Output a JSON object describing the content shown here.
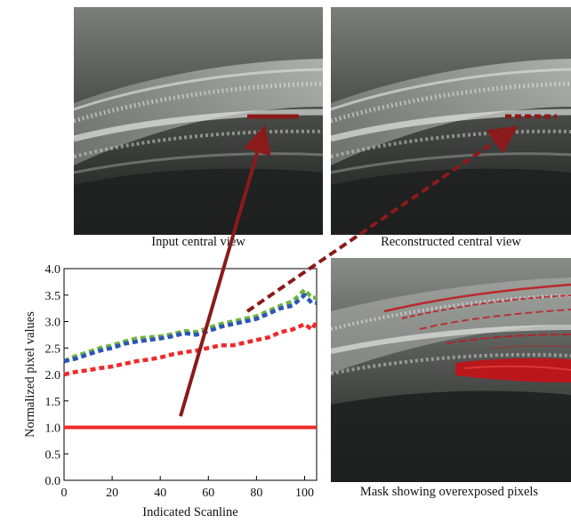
{
  "captions": {
    "input": "Input central view",
    "reconstructed": "Reconstructed central view",
    "mask": "Mask showing overexposed pixels"
  },
  "colors": {
    "marker": "#8b1a1a",
    "red": "#ee2a2a",
    "blue": "#2b55b5",
    "green": "#6fb240",
    "mask": "#c0141a"
  },
  "chart_data": {
    "type": "line",
    "xlabel": "Indicated Scanline",
    "ylabel": "Normalized pixel values",
    "xlim": [
      0,
      105
    ],
    "ylim": [
      0.0,
      4.0
    ],
    "xticks": [
      "0",
      "20",
      "40",
      "60",
      "80",
      "100"
    ],
    "yticks": [
      "0.0",
      "0.5",
      "1.0",
      "1.5",
      "2.0",
      "2.5",
      "3.0",
      "3.5",
      "4.0"
    ],
    "grid": false,
    "series": [
      {
        "color": "#ee2a2a",
        "style": "solid",
        "x": [
          0,
          105
        ],
        "y": [
          1.0,
          1.0
        ]
      },
      {
        "color": "#6fb240",
        "style": "dashed",
        "x": [
          0,
          5,
          10,
          15,
          20,
          25,
          30,
          35,
          40,
          45,
          50,
          55,
          60,
          65,
          70,
          75,
          80,
          85,
          90,
          95,
          100,
          103,
          105
        ],
        "y": [
          2.25,
          2.35,
          2.42,
          2.5,
          2.55,
          2.62,
          2.68,
          2.7,
          2.72,
          2.76,
          2.82,
          2.8,
          2.88,
          2.95,
          3.0,
          3.05,
          3.1,
          3.2,
          3.3,
          3.38,
          3.6,
          3.45,
          3.45
        ]
      },
      {
        "color": "#2b55b5",
        "style": "dashed",
        "x": [
          0,
          5,
          10,
          15,
          20,
          25,
          30,
          35,
          40,
          45,
          50,
          55,
          60,
          65,
          70,
          75,
          80,
          85,
          90,
          95,
          100,
          103,
          105
        ],
        "y": [
          2.25,
          2.3,
          2.38,
          2.45,
          2.5,
          2.58,
          2.62,
          2.65,
          2.68,
          2.72,
          2.78,
          2.75,
          2.82,
          2.9,
          2.95,
          3.0,
          3.05,
          3.15,
          3.25,
          3.3,
          3.5,
          3.35,
          3.35
        ]
      },
      {
        "color": "#ee2a2a",
        "style": "dashed",
        "x": [
          0,
          5,
          10,
          15,
          20,
          25,
          30,
          35,
          40,
          45,
          50,
          55,
          60,
          65,
          70,
          75,
          80,
          85,
          90,
          95,
          100,
          103,
          105
        ],
        "y": [
          2.0,
          2.05,
          2.08,
          2.12,
          2.15,
          2.2,
          2.25,
          2.28,
          2.32,
          2.38,
          2.42,
          2.45,
          2.5,
          2.55,
          2.55,
          2.6,
          2.65,
          2.7,
          2.8,
          2.85,
          2.95,
          2.85,
          3.0
        ]
      }
    ]
  }
}
